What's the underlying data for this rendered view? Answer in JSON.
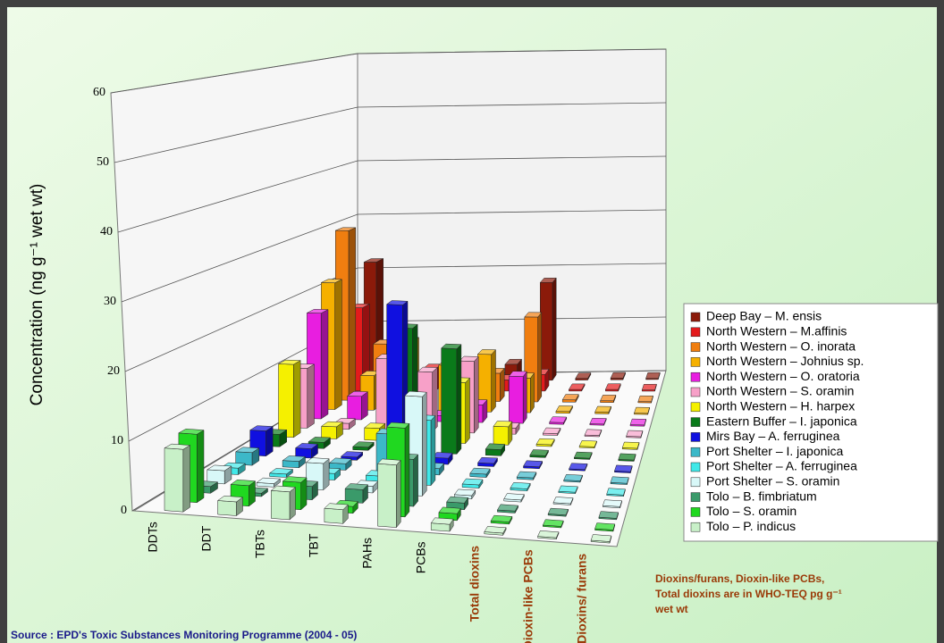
{
  "chart_data": {
    "type": "bar3d",
    "y_label": "Concentration (ng g⁻¹ wet wt)",
    "categories": [
      "DDTs",
      "DDT",
      "TBTs",
      "TBT",
      "PAHs",
      "PCBs",
      "Total dioxins",
      "Dioxin-like PCBs",
      "Dioxins/ furans"
    ],
    "category_label_colors": [
      "#000000",
      "#000000",
      "#000000",
      "#000000",
      "#000000",
      "#000000",
      "#9a3a08",
      "#9a3a08",
      "#9a3a08"
    ],
    "ylim": [
      0,
      60
    ],
    "yticks": [
      0,
      10,
      20,
      30,
      40,
      50,
      60
    ],
    "grid": true,
    "series": [
      {
        "name": "Deep Bay – M. ensis",
        "color": "#8b1a0a",
        "values": [
          22,
          2,
          1.5,
          0.5,
          3,
          18,
          0.3,
          0.3,
          0.2
        ]
      },
      {
        "name": "North Western – M.affinis",
        "color": "#e41a1c",
        "values": [
          15,
          8,
          4,
          1,
          2,
          3,
          0.3,
          0.3,
          0.2
        ]
      },
      {
        "name": "North Western – O. inorata",
        "color": "#f07e10",
        "values": [
          30,
          10,
          3,
          1,
          5,
          15,
          0.4,
          0.3,
          0.2
        ]
      },
      {
        "name": "North Western – Johnius sp.",
        "color": "#f5b000",
        "values": [
          22,
          6,
          12,
          8,
          10,
          6,
          0.3,
          0.3,
          0.2
        ]
      },
      {
        "name": "North Western – O. oratoria",
        "color": "#e81ee0",
        "values": [
          18,
          4,
          2,
          1,
          3,
          8,
          0.3,
          0.2,
          0.2
        ]
      },
      {
        "name": "North Western – S. oramin",
        "color": "#f7a0c8",
        "values": [
          10,
          1,
          12,
          10,
          12,
          1,
          0.3,
          0.2,
          0.2
        ]
      },
      {
        "name": "North Western – H. harpex",
        "color": "#f5f000",
        "values": [
          12,
          2,
          2,
          1,
          10,
          3,
          0.3,
          0.2,
          0.2
        ]
      },
      {
        "name": "Eastern Buffer – I. japonica",
        "color": "#0a7a1a",
        "values": [
          2,
          1,
          0.5,
          20,
          17,
          1,
          0.3,
          0.2,
          0.2
        ]
      },
      {
        "name": "Mirs Bay – A. ferruginea",
        "color": "#1010e0",
        "values": [
          4,
          1.5,
          0.5,
          25,
          1,
          0.5,
          0.3,
          0.2,
          0.2
        ]
      },
      {
        "name": "Port Shelter – I. japonica",
        "color": "#3cb8c8",
        "values": [
          2,
          1,
          1,
          6,
          1,
          0.5,
          0.3,
          0.2,
          0.2
        ]
      },
      {
        "name": "Port Shelter – A. ferruginea",
        "color": "#40e8e8",
        "values": [
          1,
          0.5,
          1,
          1,
          10,
          0.5,
          0.3,
          0.2,
          0.2
        ]
      },
      {
        "name": "Port Shelter – S. oramin",
        "color": "#d8f8f8",
        "values": [
          2,
          0.5,
          4,
          1,
          15,
          0.5,
          0.3,
          0.2,
          0.2
        ]
      },
      {
        "name": "Tolo – B. fimbriatum",
        "color": "#3a9a6a",
        "values": [
          1,
          0.5,
          2,
          2,
          7,
          1,
          0.3,
          0.2,
          0.2
        ]
      },
      {
        "name": "Tolo – S. oramin",
        "color": "#20d820",
        "values": [
          10,
          3,
          4,
          1,
          13,
          1,
          0.3,
          0.2,
          0.2
        ]
      },
      {
        "name": "Tolo – P. indicus",
        "color": "#c8f0c8",
        "values": [
          9,
          2,
          4,
          2,
          9,
          1,
          0.3,
          0.2,
          0.2
        ]
      }
    ],
    "note": "Dioxins/furans, Dioxin-like PCBs, Total dioxins are in WHO-TEQ pg g⁻¹ wet wt",
    "source": "Source : EPD's Toxic Substances Monitoring Programme (2004 - 05)"
  }
}
